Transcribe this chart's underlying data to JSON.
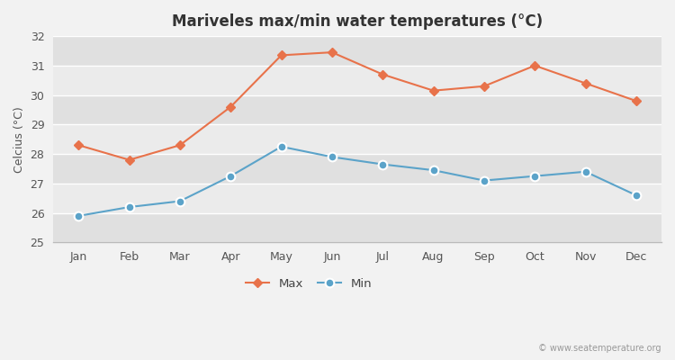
{
  "title": "Mariveles max/min water temperatures (°C)",
  "ylabel": "Celcius (°C)",
  "months": [
    "Jan",
    "Feb",
    "Mar",
    "Apr",
    "May",
    "Jun",
    "Jul",
    "Aug",
    "Sep",
    "Oct",
    "Nov",
    "Dec"
  ],
  "max_values": [
    28.3,
    27.8,
    28.3,
    29.6,
    31.35,
    31.45,
    30.7,
    30.15,
    30.3,
    31.0,
    30.4,
    29.8
  ],
  "min_values": [
    25.9,
    26.2,
    26.4,
    27.25,
    28.25,
    27.9,
    27.65,
    27.45,
    27.1,
    27.25,
    27.4,
    26.6
  ],
  "max_color": "#e8724a",
  "min_color": "#5ba3c9",
  "bg_color": "#f2f2f2",
  "stripe_light": "#ebebeb",
  "stripe_dark": "#e0e0e0",
  "grid_color": "#ffffff",
  "ylim": [
    25,
    32
  ],
  "yticks": [
    25,
    26,
    27,
    28,
    29,
    30,
    31,
    32
  ],
  "watermark": "© www.seatemperature.org",
  "legend_max": "Max",
  "legend_min": "Min"
}
